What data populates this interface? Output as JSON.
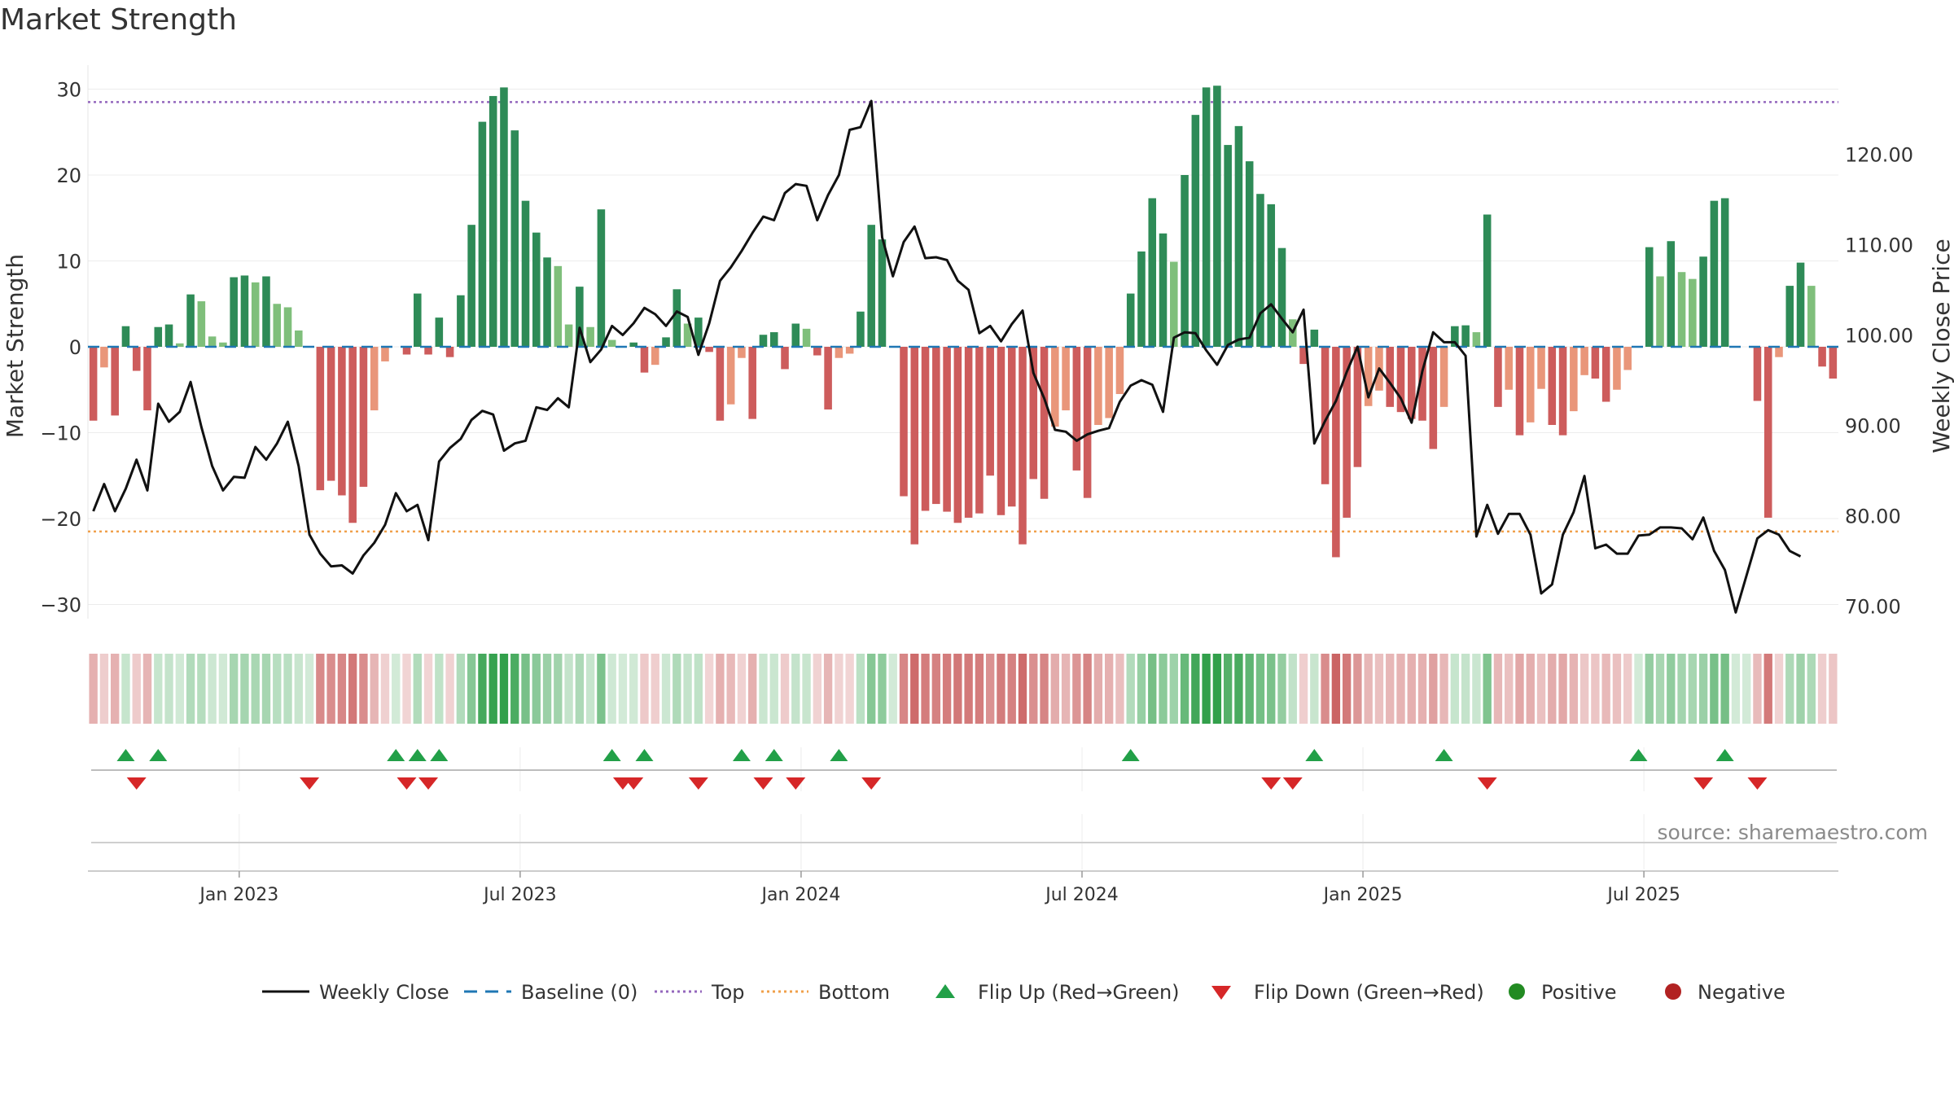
{
  "title": "Market Strength",
  "source": "source: sharemaestro.com",
  "chart_data": {
    "type": "bar",
    "ylabel_left": "Market Strength",
    "ylabel_right": "Weekly Close Price",
    "y_left_ticks": [
      "30",
      "20",
      "10",
      "0",
      "−10",
      "−20",
      "−30"
    ],
    "y_left_values": [
      30,
      20,
      10,
      0,
      -10,
      -20,
      -30
    ],
    "y_right_ticks": [
      "120.00",
      "110.00",
      "100.00",
      "90.00",
      "80.00",
      "70.00"
    ],
    "y_right_values": [
      120,
      110,
      100,
      90,
      80,
      70
    ],
    "x_ticks": [
      "Jan 2023",
      "Jul 2023",
      "Jan 2024",
      "Jul 2024",
      "Jan 2025",
      "Jul 2025"
    ],
    "top_level": 28.5,
    "bottom_level": -21.5,
    "strength": [
      -8.6,
      -2.4,
      -8,
      2.4,
      -2.8,
      -7.4,
      2.3,
      2.6,
      0.4,
      6.1,
      5.3,
      1.2,
      0.5,
      8.1,
      8.3,
      7.5,
      8.2,
      5,
      4.6,
      1.9,
      0,
      -16.7,
      -15.6,
      -17.3,
      -20.5,
      -16.3,
      -7.4,
      -1.7,
      0,
      -0.9,
      6.2,
      -0.9,
      3.4,
      -1.2,
      6,
      14.2,
      26.2,
      29.2,
      30.2,
      25.2,
      17,
      13.3,
      10.4,
      9.4,
      2.6,
      7,
      2.3,
      16,
      0.8,
      0,
      0.5,
      -3,
      -2.1,
      1.1,
      6.7,
      2.7,
      3.4,
      -0.6,
      -8.6,
      -6.7,
      -1.3,
      -8.4,
      1.4,
      1.7,
      -2.6,
      2.7,
      2.1,
      -1,
      -7.3,
      -1.3,
      -0.8,
      4.1,
      14.2,
      12.5,
      0,
      -17.4,
      -23,
      -19.1,
      -18.3,
      -19.2,
      -20.5,
      -19.9,
      -19.4,
      -15,
      -19.6,
      -18.6,
      -23,
      -15.4,
      -17.7,
      -9.3,
      -7.4,
      -14.4,
      -17.6,
      -9.1,
      -8.3,
      -5.5,
      6.2,
      11.1,
      17.3,
      13.2,
      9.9,
      20,
      27,
      30.2,
      30.4,
      23.5,
      25.7,
      21.6,
      17.8,
      16.6,
      11.5,
      3.2,
      -2,
      2,
      -16,
      -24.5,
      -19.9,
      -14,
      -6.9,
      -5.1,
      -7,
      -7.6,
      -8.4,
      -8.6,
      -11.9,
      -7,
      2.4,
      2.5,
      1.7,
      15.4,
      -7,
      -5,
      -10.3,
      -8.8,
      -4.9,
      -9.1,
      -10.3,
      -7.5,
      -3.3,
      -3.7,
      -6.4,
      -5,
      -2.7,
      0,
      11.6,
      8.2,
      12.3,
      8.7,
      7.9,
      10.5,
      17,
      17.3,
      0,
      0,
      -6.3,
      -19.9,
      -1.2,
      7.1,
      9.8,
      7.1,
      -2.3,
      -3.7
    ],
    "weekly_close": [
      80.5,
      83.5,
      80.5,
      83,
      86.2,
      82.8,
      92.4,
      90.4,
      91.5,
      94.8,
      89.8,
      85.5,
      82.8,
      84.3,
      84.2,
      87.6,
      86.2,
      88,
      90.4,
      85.5,
      77.9,
      75.8,
      74.4,
      74.5,
      73.6,
      75.6,
      77,
      79,
      82.5,
      80.5,
      81.2,
      77.3,
      86,
      87.5,
      88.5,
      90.6,
      91.6,
      91.2,
      87.2,
      88,
      88.3,
      92,
      91.7,
      93,
      92,
      100.8,
      97,
      98.4,
      101,
      100,
      101.3,
      103,
      102.3,
      101,
      102.6,
      102,
      97.8,
      101.3,
      106,
      107.5,
      109.3,
      111.3,
      113.1,
      112.7,
      115.7,
      116.7,
      116.5,
      112.7,
      115.5,
      117.7,
      122.7,
      123,
      125.9,
      110.8,
      106.5,
      110.3,
      112,
      108.5,
      108.6,
      108.3,
      106,
      105,
      100.2,
      101,
      99.3,
      101.2,
      102.7,
      95.8,
      93,
      89.5,
      89.3,
      88.3,
      89,
      89.4,
      89.7,
      92.6,
      94.4,
      95,
      94.5,
      91.5,
      99.7,
      100.3,
      100.2,
      98.3,
      96.7,
      98.9,
      99.5,
      99.7,
      102.4,
      103.4,
      101.8,
      100.3,
      102.8,
      88,
      90.5,
      92.7,
      95.9,
      98.7,
      93.1,
      96.3,
      94.7,
      93,
      90.3,
      96,
      100.3,
      99.2,
      99.2,
      97.7,
      77.7,
      81.2,
      78,
      80.2,
      80.2,
      77.9,
      71.4,
      72.4,
      77.9,
      80.4,
      84.4,
      76.4,
      76.8,
      75.8,
      75.8,
      77.8,
      77.9,
      78.7,
      78.7,
      78.6,
      77.4,
      79.8,
      76.1,
      74,
      69.3,
      73.4,
      77.5,
      78.4,
      77.9,
      76.1,
      75.5
    ],
    "flip_up_index": [
      3,
      6,
      28,
      30,
      32,
      48,
      51,
      60,
      63,
      69,
      96,
      113,
      125,
      143,
      151
    ],
    "flip_down_index": [
      4,
      20,
      29,
      31,
      49,
      50,
      56,
      62,
      65,
      72,
      109,
      111,
      129,
      149,
      154
    ],
    "legend": [
      {
        "label": "Weekly Close",
        "style": "solid"
      },
      {
        "label": "Baseline (0)",
        "style": "dash"
      },
      {
        "label": "Top",
        "style": "dot-purple"
      },
      {
        "label": "Bottom",
        "style": "dot-orange"
      },
      {
        "label": "Flip Up (Red→Green)",
        "style": "tri-up"
      },
      {
        "label": "Flip Down (Green→Red)",
        "style": "tri-down"
      },
      {
        "label": "Positive",
        "style": "dot-green"
      },
      {
        "label": "Negative",
        "style": "dot-red"
      }
    ],
    "colors": {
      "strong_green": "#2e8b57",
      "light_green": "#7fbf7b",
      "strong_red": "#cd5c5c",
      "light_red": "#e9967a",
      "line": "#111111",
      "baseline": "#1f77b4",
      "top": "#9467bd",
      "bottom": "#f0a04b",
      "flip_up": "#22a048",
      "flip_down": "#d62728",
      "positive": "#228b22",
      "negative": "#b22222"
    }
  }
}
